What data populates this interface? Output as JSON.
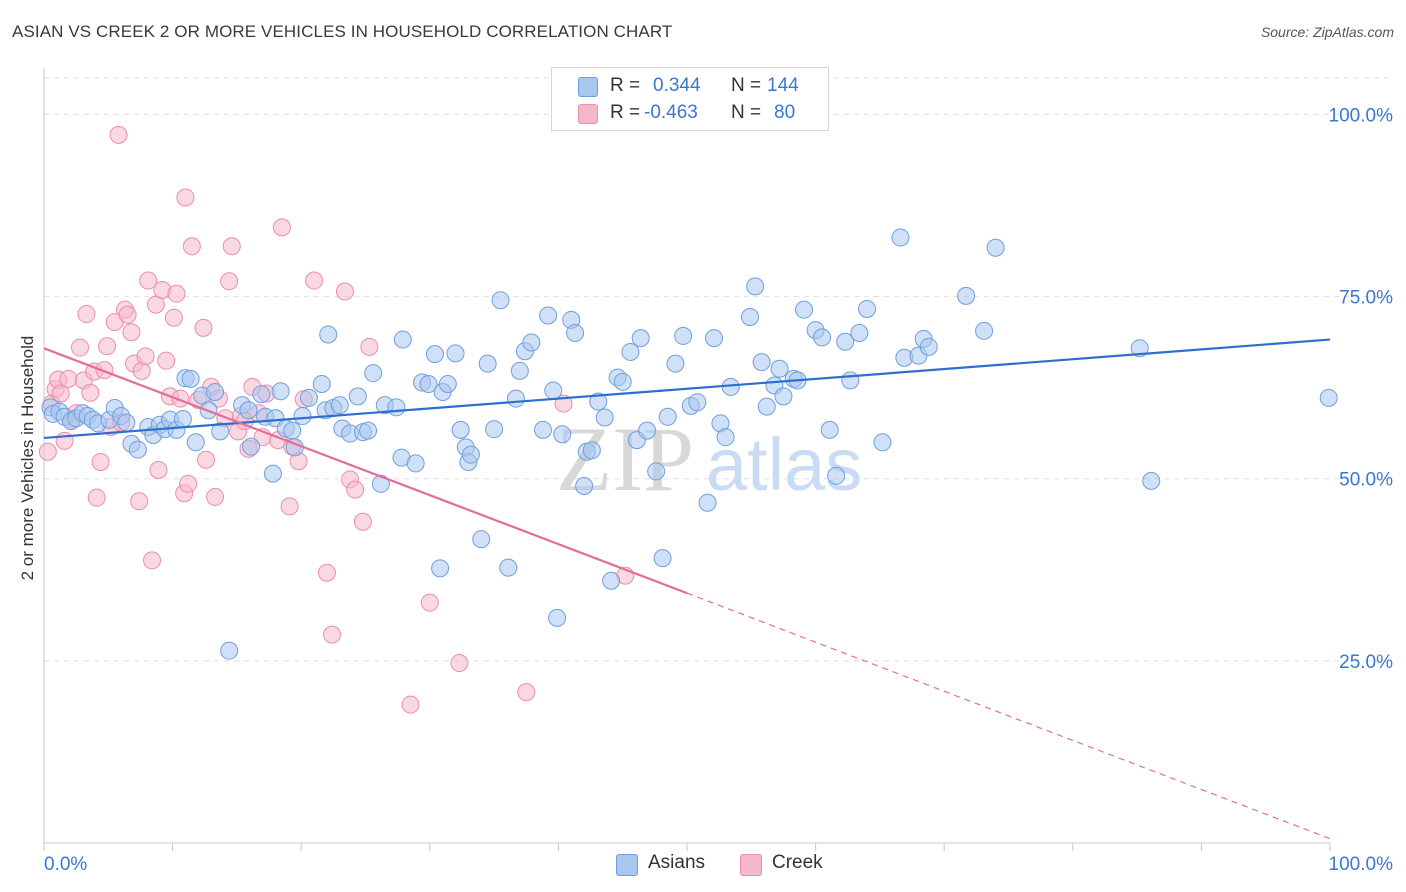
{
  "title": "ASIAN VS CREEK 2 OR MORE VEHICLES IN HOUSEHOLD CORRELATION CHART",
  "source": "Source: ZipAtlas.com",
  "watermark": "ZIPatlas",
  "legend": {
    "asians": {
      "r_label": "R =",
      "r_value": "0.344",
      "n_label": "N =",
      "n_value": "144"
    },
    "creek": {
      "r_label": "R =",
      "r_value": "-0.463",
      "n_label": "N =",
      "n_value": "80"
    }
  },
  "colors": {
    "asians_fill": "#a9c6ef",
    "asians_stroke": "#6f9fe0",
    "asians_line": "#2d6fd0",
    "creek_fill": "#f5b8cb",
    "creek_stroke": "#eb8eac",
    "creek_line": "#e46d98",
    "value_text": "#3a78d0"
  },
  "chart_data": {
    "type": "scatter",
    "title": "ASIAN VS CREEK 2 OR MORE VEHICLES IN HOUSEHOLD CORRELATION CHART",
    "xlabel": "",
    "ylabel": "2 or more Vehicles in Household",
    "xlim": [
      0,
      100
    ],
    "ylim": [
      0,
      105
    ],
    "x_tick_labels": [
      "0.0%",
      "100.0%"
    ],
    "y_tick_labels": [
      "25.0%",
      "50.0%",
      "75.0%",
      "100.0%"
    ],
    "y_ticks": [
      25,
      50,
      75,
      100
    ],
    "grid": true,
    "legend_position": "top-center",
    "series": [
      {
        "name": "Asians",
        "r": 0.344,
        "n": 144,
        "trend": {
          "x": [
            0,
            100
          ],
          "y": [
            55.6,
            69.1
          ]
        },
        "points": [
          [
            0.5,
            59.8
          ],
          [
            0.7,
            58.9
          ],
          [
            1.2,
            59.2
          ],
          [
            1.6,
            58.5
          ],
          [
            2.1,
            57.9
          ],
          [
            2.5,
            58.3
          ],
          [
            3.0,
            59.0
          ],
          [
            3.4,
            58.6
          ],
          [
            3.8,
            58.1
          ],
          [
            4.2,
            57.6
          ],
          [
            5.1,
            58.1
          ],
          [
            5.5,
            59.7
          ],
          [
            6.0,
            58.6
          ],
          [
            6.4,
            57.7
          ],
          [
            6.8,
            54.8
          ],
          [
            7.3,
            54.0
          ],
          [
            8.1,
            57.1
          ],
          [
            8.5,
            56.0
          ],
          [
            9.0,
            57.4
          ],
          [
            9.4,
            56.8
          ],
          [
            9.8,
            58.1
          ],
          [
            10.3,
            56.7
          ],
          [
            10.8,
            58.2
          ],
          [
            11.0,
            63.8
          ],
          [
            11.4,
            63.7
          ],
          [
            11.8,
            55.0
          ],
          [
            12.3,
            61.4
          ],
          [
            12.8,
            59.4
          ],
          [
            13.3,
            61.9
          ],
          [
            13.7,
            56.5
          ],
          [
            14.4,
            26.4
          ],
          [
            15.4,
            60.1
          ],
          [
            15.9,
            59.4
          ],
          [
            16.1,
            54.4
          ],
          [
            16.9,
            61.6
          ],
          [
            17.2,
            58.5
          ],
          [
            17.8,
            50.7
          ],
          [
            18.0,
            58.3
          ],
          [
            18.4,
            62.0
          ],
          [
            18.8,
            56.9
          ],
          [
            19.3,
            56.6
          ],
          [
            19.5,
            54.3
          ],
          [
            20.1,
            58.6
          ],
          [
            20.6,
            61.1
          ],
          [
            21.6,
            63.0
          ],
          [
            21.9,
            59.4
          ],
          [
            22.1,
            69.8
          ],
          [
            22.5,
            59.7
          ],
          [
            23.0,
            60.1
          ],
          [
            23.2,
            56.9
          ],
          [
            23.8,
            56.2
          ],
          [
            24.4,
            61.3
          ],
          [
            24.8,
            56.4
          ],
          [
            25.2,
            56.6
          ],
          [
            25.6,
            64.5
          ],
          [
            26.2,
            49.3
          ],
          [
            26.5,
            60.1
          ],
          [
            27.4,
            59.8
          ],
          [
            27.8,
            52.9
          ],
          [
            27.9,
            69.1
          ],
          [
            28.9,
            52.1
          ],
          [
            29.4,
            63.2
          ],
          [
            29.9,
            63.0
          ],
          [
            30.4,
            67.1
          ],
          [
            30.8,
            37.7
          ],
          [
            31.0,
            61.9
          ],
          [
            31.4,
            63.0
          ],
          [
            32.0,
            67.2
          ],
          [
            32.4,
            56.7
          ],
          [
            32.8,
            54.3
          ],
          [
            33.0,
            52.3
          ],
          [
            33.2,
            53.3
          ],
          [
            34.0,
            41.7
          ],
          [
            34.5,
            65.8
          ],
          [
            35.0,
            56.8
          ],
          [
            35.5,
            74.5
          ],
          [
            36.1,
            37.8
          ],
          [
            36.7,
            61.0
          ],
          [
            37.0,
            64.8
          ],
          [
            37.4,
            67.5
          ],
          [
            37.9,
            68.7
          ],
          [
            38.8,
            56.7
          ],
          [
            39.2,
            72.4
          ],
          [
            39.6,
            62.1
          ],
          [
            39.9,
            30.9
          ],
          [
            40.3,
            56.1
          ],
          [
            41.0,
            71.8
          ],
          [
            41.3,
            70.0
          ],
          [
            42.0,
            49.0
          ],
          [
            42.2,
            53.7
          ],
          [
            42.6,
            53.9
          ],
          [
            43.1,
            60.6
          ],
          [
            43.6,
            58.4
          ],
          [
            44.1,
            36.0
          ],
          [
            44.6,
            63.9
          ],
          [
            45.0,
            63.3
          ],
          [
            45.6,
            67.4
          ],
          [
            46.1,
            55.3
          ],
          [
            46.4,
            69.3
          ],
          [
            46.9,
            56.6
          ],
          [
            47.6,
            51.0
          ],
          [
            48.1,
            39.1
          ],
          [
            48.5,
            58.5
          ],
          [
            49.1,
            65.8
          ],
          [
            49.7,
            69.6
          ],
          [
            50.3,
            60.0
          ],
          [
            50.8,
            60.5
          ],
          [
            51.6,
            46.7
          ],
          [
            52.1,
            69.3
          ],
          [
            52.6,
            57.6
          ],
          [
            53.0,
            55.7
          ],
          [
            53.4,
            62.6
          ],
          [
            54.9,
            72.2
          ],
          [
            55.3,
            76.4
          ],
          [
            55.8,
            66.0
          ],
          [
            56.2,
            59.9
          ],
          [
            56.8,
            62.8
          ],
          [
            57.2,
            65.1
          ],
          [
            57.5,
            61.3
          ],
          [
            58.3,
            63.7
          ],
          [
            58.6,
            63.5
          ],
          [
            59.1,
            73.2
          ],
          [
            60.0,
            70.4
          ],
          [
            60.5,
            69.4
          ],
          [
            61.1,
            56.7
          ],
          [
            61.6,
            50.4
          ],
          [
            62.3,
            68.8
          ],
          [
            62.7,
            63.5
          ],
          [
            63.4,
            70.0
          ],
          [
            64.0,
            73.3
          ],
          [
            65.2,
            55.0
          ],
          [
            66.6,
            83.1
          ],
          [
            66.9,
            66.6
          ],
          [
            68.0,
            66.9
          ],
          [
            68.4,
            69.2
          ],
          [
            68.8,
            68.1
          ],
          [
            71.7,
            75.1
          ],
          [
            73.1,
            70.3
          ],
          [
            74.0,
            81.7
          ],
          [
            85.2,
            67.9
          ],
          [
            86.1,
            49.7
          ],
          [
            99.9,
            61.1
          ]
        ]
      },
      {
        "name": "Creek",
        "r": -0.463,
        "n": 80,
        "trend": {
          "x": [
            0,
            50
          ],
          "y": [
            67.9,
            34.3
          ]
        },
        "trend_dashed": {
          "x": [
            50,
            100
          ],
          "y": [
            34.3,
            0.6
          ]
        },
        "points": [
          [
            0.3,
            53.7
          ],
          [
            0.6,
            60.3
          ],
          [
            0.9,
            62.3
          ],
          [
            1.1,
            63.6
          ],
          [
            1.3,
            61.7
          ],
          [
            1.6,
            55.2
          ],
          [
            1.9,
            63.7
          ],
          [
            2.2,
            58.1
          ],
          [
            2.5,
            59.0
          ],
          [
            2.8,
            68.0
          ],
          [
            3.1,
            63.5
          ],
          [
            3.3,
            72.6
          ],
          [
            3.6,
            61.8
          ],
          [
            3.9,
            64.7
          ],
          [
            4.1,
            47.4
          ],
          [
            4.4,
            52.3
          ],
          [
            4.7,
            64.9
          ],
          [
            4.9,
            68.2
          ],
          [
            5.2,
            57.1
          ],
          [
            5.5,
            71.5
          ],
          [
            5.8,
            97.2
          ],
          [
            6.0,
            57.7
          ],
          [
            6.3,
            73.2
          ],
          [
            6.5,
            72.5
          ],
          [
            6.8,
            70.1
          ],
          [
            7.0,
            65.8
          ],
          [
            7.4,
            46.9
          ],
          [
            7.6,
            64.8
          ],
          [
            7.9,
            66.8
          ],
          [
            8.1,
            77.2
          ],
          [
            8.4,
            38.8
          ],
          [
            8.7,
            73.9
          ],
          [
            8.9,
            51.2
          ],
          [
            9.2,
            75.9
          ],
          [
            9.5,
            66.2
          ],
          [
            9.8,
            61.3
          ],
          [
            10.1,
            72.1
          ],
          [
            10.3,
            75.4
          ],
          [
            10.6,
            61.0
          ],
          [
            10.9,
            48.0
          ],
          [
            11.0,
            88.6
          ],
          [
            11.2,
            49.3
          ],
          [
            11.5,
            81.9
          ],
          [
            12.0,
            60.8
          ],
          [
            12.4,
            70.7
          ],
          [
            12.6,
            52.6
          ],
          [
            13.0,
            62.6
          ],
          [
            13.3,
            47.5
          ],
          [
            13.6,
            61.0
          ],
          [
            14.1,
            58.3
          ],
          [
            14.4,
            77.1
          ],
          [
            14.6,
            81.9
          ],
          [
            15.1,
            56.5
          ],
          [
            15.3,
            58.6
          ],
          [
            15.6,
            57.9
          ],
          [
            15.9,
            54.1
          ],
          [
            16.2,
            62.6
          ],
          [
            16.7,
            59.0
          ],
          [
            17.0,
            55.7
          ],
          [
            17.3,
            61.7
          ],
          [
            18.2,
            55.3
          ],
          [
            18.5,
            84.5
          ],
          [
            19.1,
            46.2
          ],
          [
            19.3,
            54.4
          ],
          [
            19.8,
            52.4
          ],
          [
            20.2,
            60.9
          ],
          [
            21.0,
            77.2
          ],
          [
            22.0,
            37.1
          ],
          [
            22.4,
            28.6
          ],
          [
            23.4,
            75.7
          ],
          [
            23.8,
            49.9
          ],
          [
            24.2,
            48.5
          ],
          [
            24.8,
            44.1
          ],
          [
            25.3,
            68.1
          ],
          [
            28.5,
            19.0
          ],
          [
            30.0,
            33.0
          ],
          [
            32.3,
            24.7
          ],
          [
            37.5,
            20.7
          ],
          [
            40.4,
            60.3
          ],
          [
            45.2,
            36.7
          ]
        ]
      }
    ]
  }
}
